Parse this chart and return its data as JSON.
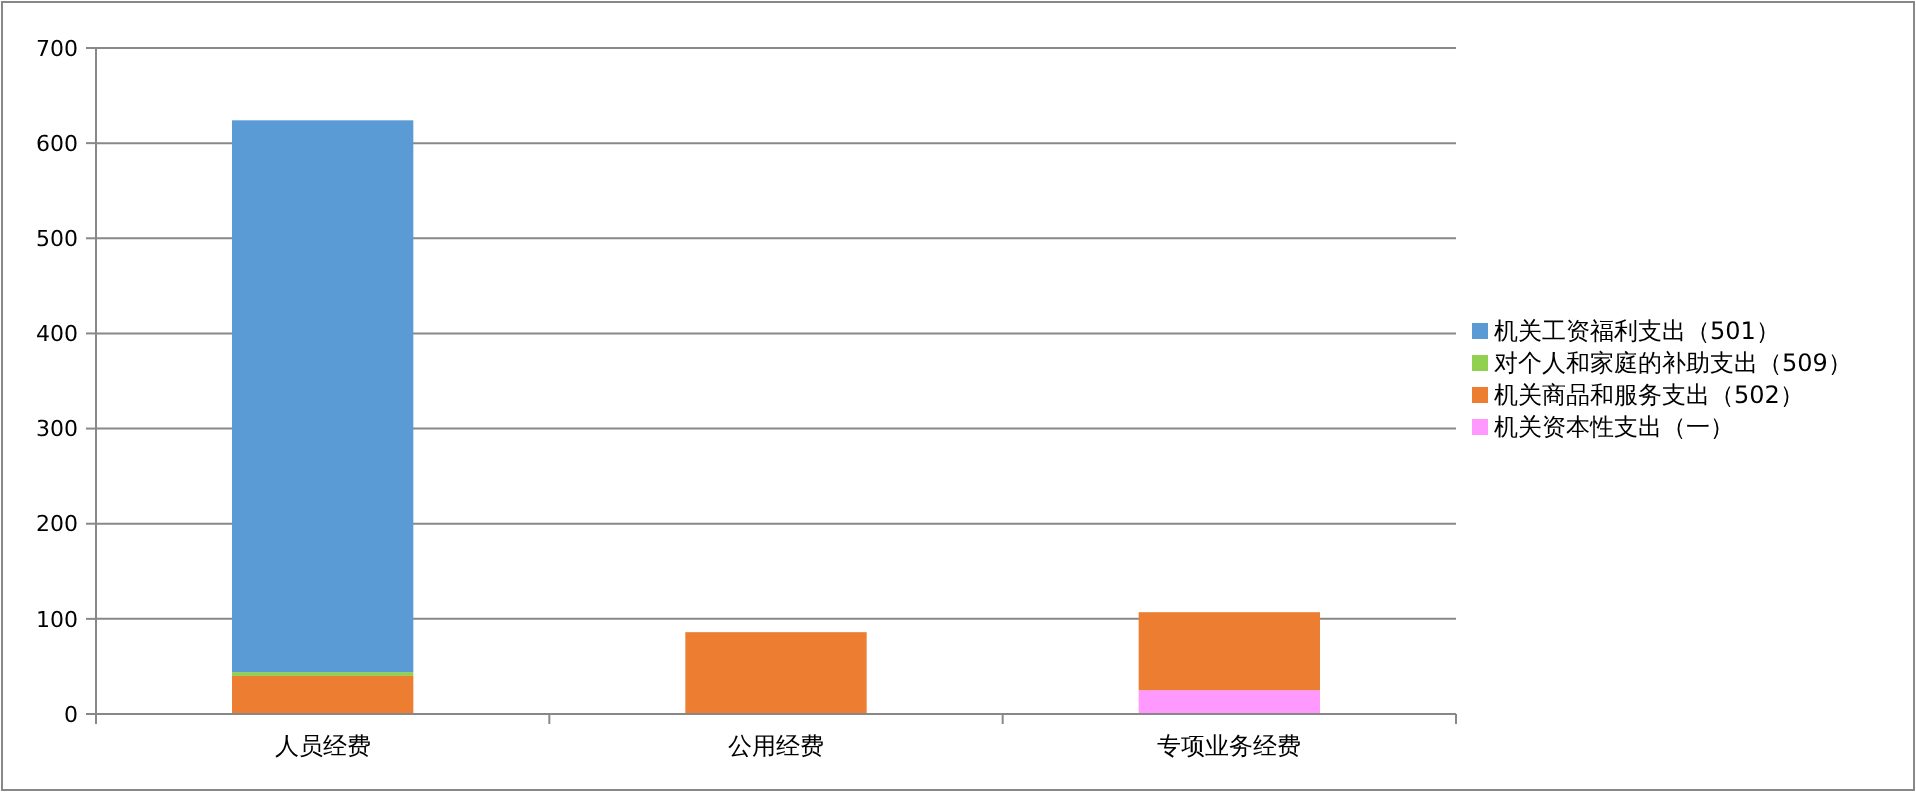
{
  "chart_data": {
    "type": "bar",
    "stacked": true,
    "categories": [
      "人员经费",
      "公用经费",
      "专项业务经费"
    ],
    "series": [
      {
        "name": "机关资本性支出（一）",
        "color": "#ff99ff",
        "values": [
          null,
          null,
          25
        ]
      },
      {
        "name": "机关商品和服务支出（502）",
        "color": "#ed7d31",
        "values": [
          40,
          86,
          82
        ]
      },
      {
        "name": "对个人和家庭的补助支出（509）",
        "color": "#92d050",
        "values": [
          4,
          null,
          null
        ]
      },
      {
        "name": "机关工资福利支出（501）",
        "color": "#5b9bd5",
        "values": [
          580,
          null,
          null
        ]
      }
    ],
    "ylim": [
      0,
      700
    ],
    "yticks": [
      0,
      100,
      200,
      300,
      400,
      500,
      600,
      700
    ],
    "grid": "y",
    "legend": "right"
  }
}
